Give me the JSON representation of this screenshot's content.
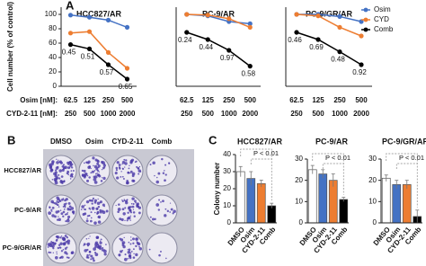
{
  "panel_labels": [
    "A",
    "B",
    "C"
  ],
  "dose_row_labels": [
    "Osim [nM]:",
    "CYD-2-11 [nM]:"
  ],
  "plates": {
    "columns": [
      "DMSO",
      "Osim",
      "CYD-2-11",
      "Comb"
    ],
    "rows": [
      "HCC827/AR",
      "PC-9/AR",
      "PC-9/GR/AR"
    ]
  },
  "chart_data": [
    {
      "type": "line",
      "title": "HCC827/AR",
      "y_label": "Cell number (% of control)",
      "categories": [
        "62.5",
        "125",
        "250",
        "500"
      ],
      "cyd_doses": [
        "250",
        "500",
        "1000",
        "2000"
      ],
      "ylim": [
        0,
        110
      ],
      "yticks": [
        0,
        20,
        40,
        60,
        80,
        100
      ],
      "series": [
        {
          "color": "#4472c4",
          "values": [
            99,
            96,
            92,
            82
          ]
        },
        {
          "color": "#ed7d31",
          "values": [
            74,
            76,
            47,
            25
          ]
        },
        {
          "color": "#000000",
          "values": [
            58,
            52,
            30,
            10
          ]
        }
      ],
      "ci_labels": [
        0.45,
        0.51,
        0.57,
        0.65
      ]
    },
    {
      "type": "line",
      "title": "PC-9/AR",
      "categories": [
        "62.5",
        "125",
        "250",
        "500"
      ],
      "cyd_doses": [
        "250",
        "500",
        "1000",
        "2000"
      ],
      "ylim": [
        0,
        110
      ],
      "series": [
        {
          "color": "#4472c4",
          "values": [
            100,
            98,
            90,
            87
          ]
        },
        {
          "color": "#ed7d31",
          "values": [
            100,
            99,
            94,
            82
          ]
        },
        {
          "color": "#000000",
          "values": [
            75,
            65,
            50,
            28
          ]
        }
      ],
      "ci_labels": [
        0.24,
        0.44,
        0.97,
        0.58
      ]
    },
    {
      "type": "line",
      "title": "PC-9/GR/AR",
      "categories": [
        "62.5",
        "125",
        "250",
        "500"
      ],
      "cyd_doses": [
        "250",
        "500",
        "1000",
        "2000"
      ],
      "ylim": [
        0,
        110
      ],
      "legend": "upper right",
      "series": [
        {
          "name": "Osim",
          "color": "#4472c4",
          "values": [
            100,
            100,
            97,
            90
          ]
        },
        {
          "name": "CYD",
          "color": "#ed7d31",
          "values": [
            100,
            98,
            82,
            70
          ]
        },
        {
          "name": "Comb",
          "color": "#000000",
          "values": [
            75,
            65,
            48,
            30
          ]
        }
      ],
      "ci_labels": [
        0.46,
        0.69,
        0.48,
        0.92
      ]
    },
    {
      "type": "bar",
      "title": "HCC827/AR",
      "y_label": "Colony number",
      "categories": [
        "DMSO",
        "Osim",
        "CYD-2-11",
        "Comb"
      ],
      "values": [
        30,
        26,
        23,
        10
      ],
      "errors": [
        3,
        4,
        2,
        1.5
      ],
      "colors": [
        "#ffffff",
        "#4472c4",
        "#ed7d31",
        "#000000"
      ],
      "ylim": [
        0,
        40
      ],
      "yticks": [
        0,
        10,
        20,
        30,
        40
      ],
      "annotation": "P < 0.01"
    },
    {
      "type": "bar",
      "title": "PC-9/AR",
      "categories": [
        "DMSO",
        "Osim",
        "CYD-2-11",
        "Comb"
      ],
      "values": [
        25,
        23,
        20,
        11
      ],
      "errors": [
        2,
        2,
        3,
        1
      ],
      "colors": [
        "#ffffff",
        "#4472c4",
        "#ed7d31",
        "#000000"
      ],
      "ylim": [
        0,
        30
      ],
      "yticks": [
        0,
        10,
        20,
        30
      ],
      "annotation": "P < 0.01"
    },
    {
      "type": "bar",
      "title": "PC-9/GR/AR",
      "categories": [
        "DMSO",
        "Osim",
        "CYD-2-11",
        "Comb"
      ],
      "values": [
        21,
        18,
        18,
        3
      ],
      "errors": [
        1.5,
        2,
        2,
        3
      ],
      "colors": [
        "#ffffff",
        "#4472c4",
        "#ed7d31",
        "#000000"
      ],
      "ylim": [
        0,
        30
      ],
      "yticks": [
        0,
        10,
        20,
        30
      ],
      "annotation": "P < 0.01"
    }
  ]
}
